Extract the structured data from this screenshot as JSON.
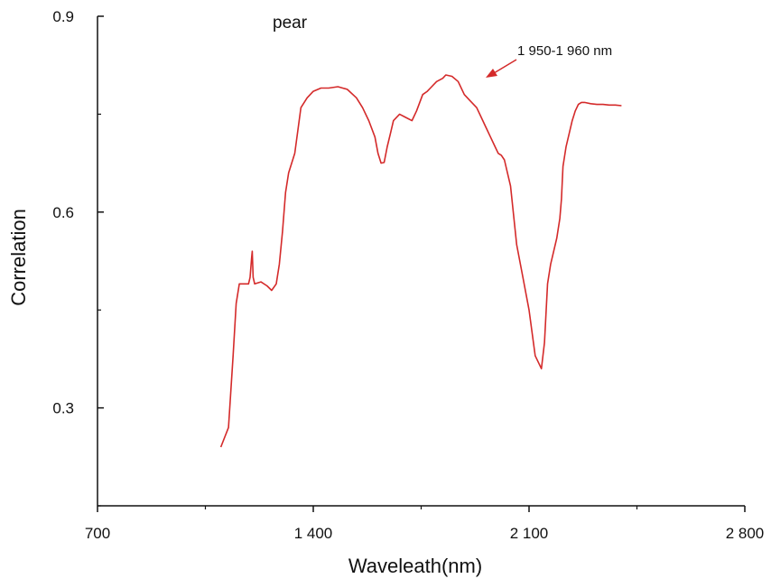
{
  "chart_data": {
    "type": "line",
    "title": "pear",
    "xlabel": "Waveleath(nm)",
    "ylabel": "Correlation",
    "xlim": [
      700,
      2800
    ],
    "ylim": [
      0.15,
      0.9
    ],
    "x_ticks": [
      700,
      1400,
      2100,
      2800
    ],
    "x_tick_labels": [
      "700",
      "1 400",
      "2 100",
      "2 800"
    ],
    "y_ticks": [
      0.3,
      0.6,
      0.9
    ],
    "y_tick_labels": [
      "0.3",
      "0.6",
      "0.9"
    ],
    "grid": false,
    "line_color": "#d42a2a",
    "annotation": {
      "text": "1 950-1 960 nm",
      "x": 1955,
      "y": 0.81
    },
    "series": [
      {
        "x": [
          1100,
          1125,
          1140,
          1150,
          1160,
          1170,
          1180,
          1190,
          1195,
          1200,
          1202,
          1205,
          1210,
          1230,
          1250,
          1265,
          1280,
          1290,
          1300,
          1310,
          1320,
          1340,
          1360,
          1380,
          1400,
          1425,
          1450,
          1480,
          1510,
          1540,
          1560,
          1580,
          1600,
          1610,
          1620,
          1630,
          1640,
          1650,
          1660,
          1680,
          1700,
          1720,
          1735,
          1755,
          1770,
          1780,
          1800,
          1820,
          1830,
          1850,
          1870,
          1890,
          1910,
          1930,
          1950,
          1960,
          1975,
          1990,
          2000,
          2010,
          2020,
          2040,
          2060,
          2080,
          2100,
          2120,
          2140,
          2150,
          2160,
          2170,
          2180,
          2190,
          2200,
          2205,
          2208,
          2210,
          2220,
          2230,
          2240,
          2250,
          2260,
          2270,
          2280,
          2300,
          2320,
          2340,
          2360,
          2380,
          2400
        ],
        "y": [
          0.24,
          0.27,
          0.38,
          0.46,
          0.49,
          0.49,
          0.49,
          0.49,
          0.5,
          0.53,
          0.54,
          0.5,
          0.49,
          0.493,
          0.487,
          0.48,
          0.49,
          0.52,
          0.57,
          0.63,
          0.66,
          0.69,
          0.76,
          0.775,
          0.785,
          0.79,
          0.79,
          0.792,
          0.788,
          0.775,
          0.76,
          0.74,
          0.715,
          0.69,
          0.675,
          0.676,
          0.7,
          0.72,
          0.74,
          0.75,
          0.745,
          0.74,
          0.755,
          0.78,
          0.785,
          0.79,
          0.8,
          0.805,
          0.81,
          0.808,
          0.8,
          0.78,
          0.77,
          0.76,
          0.74,
          0.73,
          0.715,
          0.7,
          0.69,
          0.687,
          0.68,
          0.64,
          0.55,
          0.5,
          0.45,
          0.38,
          0.36,
          0.4,
          0.49,
          0.52,
          0.54,
          0.56,
          0.59,
          0.62,
          0.65,
          0.67,
          0.7,
          0.72,
          0.74,
          0.755,
          0.765,
          0.768,
          0.768,
          0.766,
          0.765,
          0.765,
          0.764,
          0.764,
          0.763
        ]
      }
    ]
  }
}
